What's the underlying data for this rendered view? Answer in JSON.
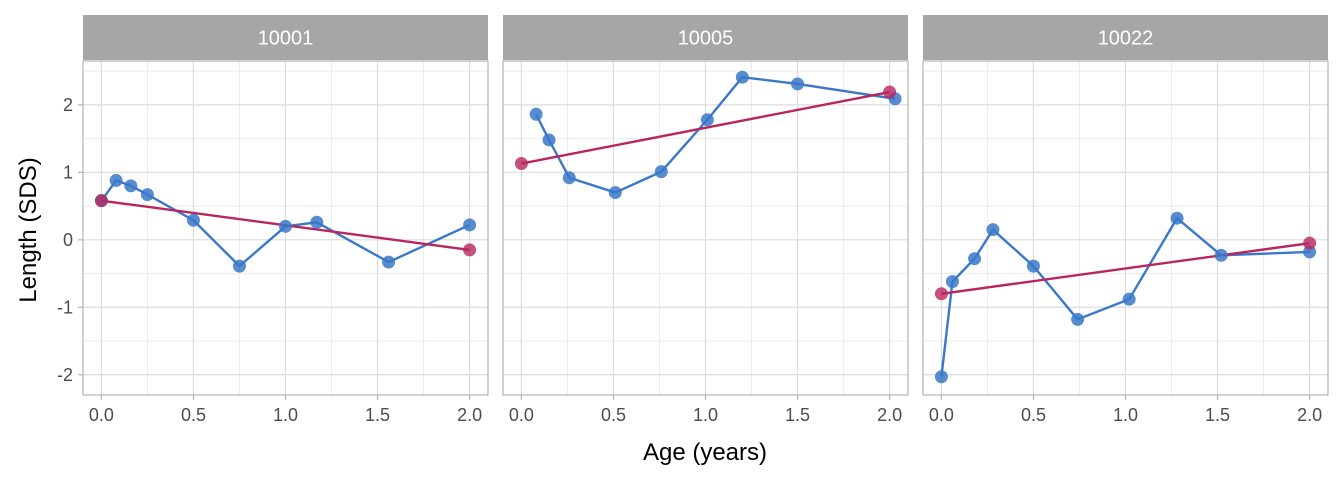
{
  "chart_data": {
    "type": "line",
    "xlabel": "Age (years)",
    "ylabel": "Length (SDS)",
    "xlim": [
      -0.1,
      2.1
    ],
    "ylim": [
      -2.3,
      2.65
    ],
    "x_ticks": [
      0.0,
      0.5,
      1.0,
      1.5,
      2.0
    ],
    "x_tick_labels": [
      "0.0",
      "0.5",
      "1.0",
      "1.5",
      "2.0"
    ],
    "y_ticks": [
      -2,
      -1,
      0,
      1,
      2
    ],
    "y_tick_labels": [
      "-2",
      "-1",
      "0",
      "1",
      "2"
    ],
    "grid": true,
    "colors": {
      "observed": "#3a78c9",
      "fitted": "#b8255f",
      "strip_bg": "#a6a6a6",
      "grid_major": "#dcdcdc",
      "grid_minor": "#ececec",
      "panel_border": "#b3b3b3"
    },
    "panels": [
      {
        "label": "10001",
        "observed": {
          "x": [
            0.0,
            0.08,
            0.16,
            0.25,
            0.5,
            0.75,
            1.0,
            1.17,
            1.56,
            2.0
          ],
          "y": [
            0.58,
            0.88,
            0.8,
            0.67,
            0.29,
            -0.39,
            0.2,
            0.26,
            -0.33,
            0.22
          ]
        },
        "fitted": {
          "x": [
            0.0,
            2.0
          ],
          "y": [
            0.58,
            -0.15
          ]
        }
      },
      {
        "label": "10005",
        "observed": {
          "x": [
            0.08,
            0.15,
            0.26,
            0.51,
            0.76,
            1.01,
            1.2,
            1.5,
            2.03
          ],
          "y": [
            1.86,
            1.48,
            0.92,
            0.7,
            1.01,
            1.78,
            2.41,
            2.31,
            2.09
          ]
        },
        "fitted": {
          "x": [
            0.0,
            2.0
          ],
          "y": [
            1.13,
            2.19
          ]
        }
      },
      {
        "label": "10022",
        "observed": {
          "x": [
            0.0,
            0.06,
            0.18,
            0.28,
            0.5,
            0.74,
            1.02,
            1.28,
            1.52,
            2.0
          ],
          "y": [
            -2.03,
            -0.62,
            -0.28,
            0.15,
            -0.39,
            -1.18,
            -0.88,
            0.32,
            -0.23,
            -0.18
          ]
        },
        "fitted": {
          "x": [
            0.0,
            2.0
          ],
          "y": [
            -0.8,
            -0.05
          ]
        }
      }
    ]
  }
}
